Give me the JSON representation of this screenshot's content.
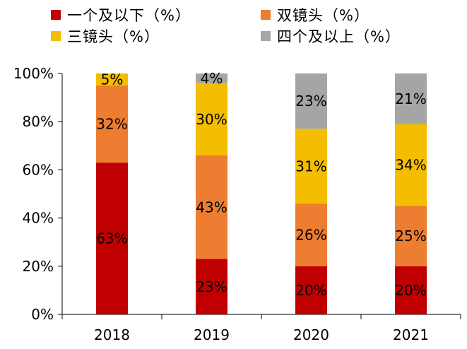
{
  "chart_data": {
    "type": "bar",
    "stacked": true,
    "categories": [
      "2018",
      "2019",
      "2020",
      "2021"
    ],
    "series": [
      {
        "name": "一个及以下（%）",
        "color": "#C00000",
        "values": [
          63,
          23,
          20,
          20
        ]
      },
      {
        "name": "双镜头（%）",
        "color": "#ED7D31",
        "values": [
          32,
          43,
          26,
          25
        ]
      },
      {
        "name": "三镜头（%）",
        "color": "#F5BD00",
        "values": [
          5,
          30,
          31,
          34
        ]
      },
      {
        "name": "四个及以上（%）",
        "color": "#A5A5A5",
        "values": [
          0,
          4,
          23,
          21
        ]
      }
    ],
    "data_labels": [
      [
        "63%",
        "23%",
        "20%",
        "20%"
      ],
      [
        "32%",
        "43%",
        "26%",
        "25%"
      ],
      [
        "5%",
        "30%",
        "31%",
        "34%"
      ],
      [
        "",
        "4%",
        "23%",
        "21%"
      ]
    ],
    "ylim": [
      0,
      100
    ],
    "yticks": [
      "0%",
      "20%",
      "40%",
      "60%",
      "80%",
      "100%"
    ],
    "ytick_values": [
      0,
      20,
      40,
      60,
      80,
      100
    ],
    "grid": false,
    "legend_position": "top",
    "title": "",
    "xlabel": "",
    "ylabel": ""
  }
}
